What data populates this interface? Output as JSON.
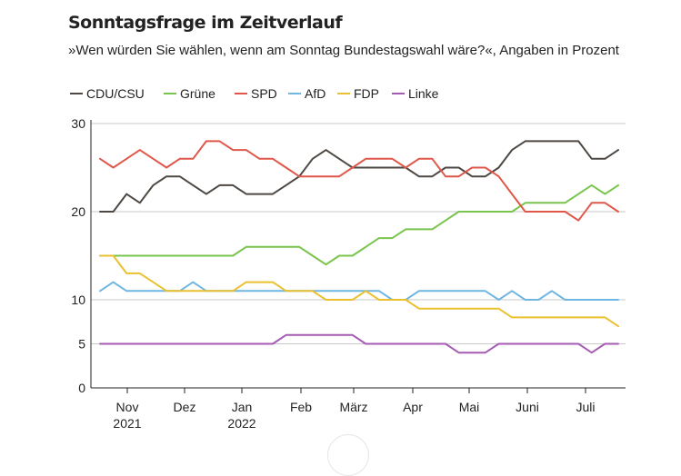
{
  "title": "Sonntagsfrage im Zeitverlauf",
  "subtitle": "»Wen würden Sie wählen, wenn am Sonntag Bundestagswahl wäre?«, Angaben in Prozent",
  "chart_data": {
    "type": "line",
    "title": "Sonntagsfrage im Zeitverlauf",
    "xlabel": "",
    "ylabel": "",
    "ylim": [
      0,
      30
    ],
    "yticks": [
      "0",
      "5",
      "10",
      "20",
      "30"
    ],
    "x_month_labels": [
      {
        "month": "Nov",
        "year": "2021"
      },
      {
        "month": "Dez",
        "year": ""
      },
      {
        "month": "Jan",
        "year": "2022"
      },
      {
        "month": "Feb",
        "year": ""
      },
      {
        "month": "März",
        "year": ""
      },
      {
        "month": "Apr",
        "year": ""
      },
      {
        "month": "Mai",
        "year": ""
      },
      {
        "month": "Juni",
        "year": ""
      },
      {
        "month": "Juli",
        "year": ""
      }
    ],
    "series": [
      {
        "name": "CDU/CSU",
        "color": "#4d4843",
        "values": [
          20,
          20,
          22,
          21,
          23,
          24,
          24,
          23,
          22,
          23,
          23,
          22,
          22,
          22,
          23,
          24,
          26,
          27,
          26,
          25,
          25,
          25,
          25,
          25,
          24,
          24,
          25,
          25,
          24,
          24,
          25,
          27,
          28,
          28,
          28,
          28,
          28,
          26,
          26,
          27
        ]
      },
      {
        "name": "Grüne",
        "color": "#79c44c",
        "values": [
          15,
          15,
          15,
          15,
          15,
          15,
          15,
          15,
          15,
          15,
          15,
          16,
          16,
          16,
          16,
          16,
          15,
          14,
          15,
          15,
          16,
          17,
          17,
          18,
          18,
          18,
          19,
          20,
          20,
          20,
          20,
          20,
          21,
          21,
          21,
          21,
          22,
          23,
          22,
          23
        ]
      },
      {
        "name": "SPD",
        "color": "#e0574a",
        "values": [
          26,
          25,
          26,
          27,
          26,
          25,
          26,
          26,
          28,
          28,
          27,
          27,
          26,
          26,
          25,
          24,
          24,
          24,
          24,
          25,
          26,
          26,
          26,
          25,
          26,
          26,
          24,
          24,
          25,
          25,
          24,
          22,
          20,
          20,
          20,
          20,
          19,
          21,
          21,
          20
        ]
      },
      {
        "name": "AfD",
        "color": "#6fb7e2",
        "values": [
          11,
          12,
          11,
          11,
          11,
          11,
          11,
          12,
          11,
          11,
          11,
          11,
          11,
          11,
          11,
          11,
          11,
          11,
          11,
          11,
          11,
          11,
          10,
          10,
          11,
          11,
          11,
          11,
          11,
          11,
          10,
          11,
          10,
          10,
          11,
          10,
          10,
          10,
          10,
          10
        ]
      },
      {
        "name": "FDP",
        "color": "#ebc02f",
        "values": [
          15,
          15,
          13,
          13,
          12,
          11,
          11,
          11,
          11,
          11,
          11,
          12,
          12,
          12,
          11,
          11,
          11,
          10,
          10,
          10,
          11,
          10,
          10,
          10,
          9,
          9,
          9,
          9,
          9,
          9,
          9,
          8,
          8,
          8,
          8,
          8,
          8,
          8,
          8,
          7
        ]
      },
      {
        "name": "Linke",
        "color": "#a55bb4",
        "values": [
          5,
          5,
          5,
          5,
          5,
          5,
          5,
          5,
          5,
          5,
          5,
          5,
          5,
          5,
          6,
          6,
          6,
          6,
          6,
          6,
          5,
          5,
          5,
          5,
          5,
          5,
          5,
          4,
          4,
          4,
          5,
          5,
          5,
          5,
          5,
          5,
          5,
          4,
          5,
          5
        ]
      }
    ]
  }
}
